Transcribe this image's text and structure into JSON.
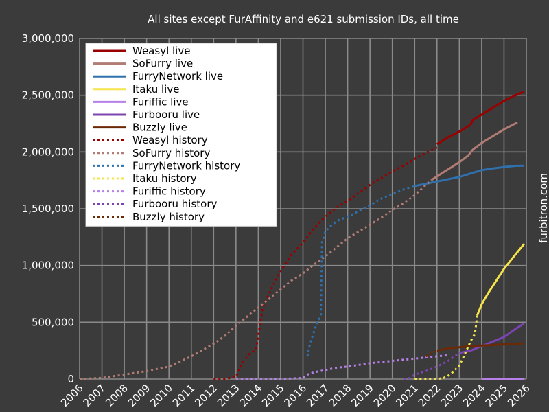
{
  "chart_data": {
    "type": "line",
    "title": "All sites except FurAffinity and e621 submission IDs, all time",
    "xlabel": "",
    "ylabel": "",
    "side_label": "furbitron.com",
    "xlim": [
      2006,
      2026
    ],
    "ylim": [
      0,
      3000000
    ],
    "x_ticks": [
      "2006",
      "2007",
      "2008",
      "2009",
      "2010",
      "2011",
      "2012",
      "2013",
      "2014",
      "2015",
      "2016",
      "2017",
      "2018",
      "2019",
      "2020",
      "2021",
      "2022",
      "2023",
      "2024",
      "2025",
      "2026"
    ],
    "y_ticks": [
      "0",
      "500,000",
      "1,000,000",
      "1,500,000",
      "2,000,000",
      "2,500,000",
      "3,000,000"
    ],
    "grid": true,
    "legend_position": "top-left",
    "series": [
      {
        "name": "Weasyl live",
        "color": "#990000",
        "style": "solid",
        "x": [
          2022.0,
          2022.5,
          2023.0,
          2023.5,
          2023.6,
          2024.0,
          2024.5,
          2025.0,
          2025.5,
          2025.9
        ],
        "y": [
          2070000,
          2130000,
          2180000,
          2240000,
          2280000,
          2330000,
          2390000,
          2450000,
          2500000,
          2530000
        ]
      },
      {
        "name": "SoFurry live",
        "color": "#b07c73",
        "style": "solid",
        "x": [
          2021.8,
          2022.2,
          2022.6,
          2023.0,
          2023.4,
          2023.6,
          2024.0,
          2024.5,
          2025.0,
          2025.6
        ],
        "y": [
          1760000,
          1810000,
          1860000,
          1910000,
          1970000,
          2020000,
          2080000,
          2140000,
          2200000,
          2260000
        ]
      },
      {
        "name": "FurryNetwork live",
        "color": "#2f70ad",
        "style": "solid",
        "x": [
          2021.0,
          2021.5,
          2022.0,
          2022.5,
          2023.0,
          2023.5,
          2024.0,
          2024.5,
          2025.0,
          2025.5,
          2025.9
        ],
        "y": [
          1700000,
          1720000,
          1740000,
          1760000,
          1780000,
          1810000,
          1840000,
          1855000,
          1868000,
          1878000,
          1880000
        ]
      },
      {
        "name": "Itaku live",
        "color": "#f6e44a",
        "style": "solid",
        "x": [
          2023.8,
          2024.0,
          2024.3,
          2024.6,
          2025.0,
          2025.4,
          2025.9
        ],
        "y": [
          560000,
          660000,
          760000,
          850000,
          970000,
          1070000,
          1190000
        ]
      },
      {
        "name": "Furiffic live",
        "color": "#b77fe8",
        "style": "solid",
        "x": [
          2024.0,
          2024.5,
          2025.0,
          2025.5,
          2025.9
        ],
        "y": [
          0,
          0,
          0,
          0,
          0
        ]
      },
      {
        "name": "Furbooru live",
        "color": "#7c44b0",
        "style": "solid",
        "x": [
          2023.0,
          2023.5,
          2024.0,
          2024.5,
          2025.0,
          2025.5,
          2025.9
        ],
        "y": [
          230000,
          250000,
          290000,
          330000,
          370000,
          440000,
          490000
        ]
      },
      {
        "name": "Buzzly live",
        "color": "#6b2a05",
        "style": "solid",
        "x": [
          2022.0,
          2022.5,
          2023.0,
          2023.5,
          2024.0,
          2024.5,
          2025.0,
          2025.5,
          2025.9
        ],
        "y": [
          250000,
          270000,
          280000,
          290000,
          295000,
          300000,
          305000,
          310000,
          315000
        ]
      },
      {
        "name": "Weasyl history",
        "color": "#990000",
        "style": "dashed",
        "x": [
          2012.0,
          2012.5,
          2013.0,
          2013.3,
          2013.6,
          2013.9,
          2014.2,
          2014.6,
          2015.0,
          2015.5,
          2016.0,
          2016.5,
          2017.0,
          2017.5,
          2018.0,
          2018.5,
          2019.0,
          2019.5,
          2020.0,
          2020.5,
          2021.0,
          2021.5,
          2022.0
        ],
        "y": [
          0,
          0,
          20000,
          150000,
          220000,
          260000,
          630000,
          800000,
          950000,
          1100000,
          1200000,
          1330000,
          1430000,
          1510000,
          1570000,
          1640000,
          1710000,
          1770000,
          1830000,
          1880000,
          1940000,
          1990000,
          2040000
        ]
      },
      {
        "name": "SoFurry history",
        "color": "#b07c73",
        "style": "dashed",
        "x": [
          2006.0,
          2007.0,
          2008.0,
          2009.0,
          2010.0,
          2011.0,
          2012.0,
          2012.5,
          2013.0,
          2013.5,
          2014.0,
          2014.5,
          2015.0,
          2015.5,
          2016.0,
          2016.5,
          2017.0,
          2017.5,
          2018.0,
          2018.5,
          2019.0,
          2019.5,
          2020.0,
          2020.5,
          2021.0,
          2021.5,
          2021.8
        ],
        "y": [
          0,
          10000,
          40000,
          70000,
          110000,
          200000,
          310000,
          380000,
          470000,
          550000,
          630000,
          710000,
          790000,
          870000,
          930000,
          1010000,
          1080000,
          1160000,
          1240000,
          1300000,
          1360000,
          1420000,
          1490000,
          1550000,
          1620000,
          1710000,
          1760000
        ]
      },
      {
        "name": "FurryNetwork history",
        "color": "#2f70ad",
        "style": "dashed",
        "x": [
          2016.2,
          2016.3,
          2016.6,
          2016.8,
          2016.85,
          2017.0,
          2017.3,
          2017.6,
          2018.0,
          2018.5,
          2019.0,
          2019.5,
          2020.0,
          2020.5,
          2021.0
        ],
        "y": [
          200000,
          300000,
          480000,
          560000,
          1200000,
          1300000,
          1360000,
          1400000,
          1430000,
          1480000,
          1530000,
          1590000,
          1630000,
          1670000,
          1700000
        ]
      },
      {
        "name": "Itaku history",
        "color": "#f6e44a",
        "style": "dashed",
        "x": [
          2021.0,
          2021.5,
          2022.0,
          2022.3,
          2022.6,
          2022.8,
          2023.0,
          2023.2,
          2023.5,
          2023.7,
          2023.8
        ],
        "y": [
          0,
          0,
          0,
          10000,
          40000,
          80000,
          120000,
          200000,
          330000,
          400000,
          560000
        ]
      },
      {
        "name": "Furiffic history",
        "color": "#b77fe8",
        "style": "dashed",
        "x": [
          2013.0,
          2014.0,
          2015.0,
          2015.5,
          2016.0,
          2016.2,
          2016.5,
          2017.0,
          2017.5,
          2018.0,
          2018.5,
          2019.0,
          2019.5,
          2020.0,
          2020.5,
          2021.0,
          2021.5,
          2022.0,
          2022.5
        ],
        "y": [
          0,
          0,
          0,
          5000,
          10000,
          40000,
          60000,
          80000,
          100000,
          110000,
          125000,
          140000,
          150000,
          160000,
          170000,
          180000,
          190000,
          200000,
          210000
        ]
      },
      {
        "name": "Furbooru history",
        "color": "#7c44b0",
        "style": "dashed",
        "x": [
          2020.5,
          2020.8,
          2021.0,
          2021.5,
          2022.0,
          2022.5,
          2023.0
        ],
        "y": [
          0,
          10000,
          40000,
          70000,
          110000,
          160000,
          230000
        ]
      },
      {
        "name": "Buzzly history",
        "color": "#6b2a05",
        "style": "dashed",
        "x": [
          2021.5,
          2021.8,
          2022.0
        ],
        "y": [
          200000,
          230000,
          250000
        ]
      }
    ]
  }
}
